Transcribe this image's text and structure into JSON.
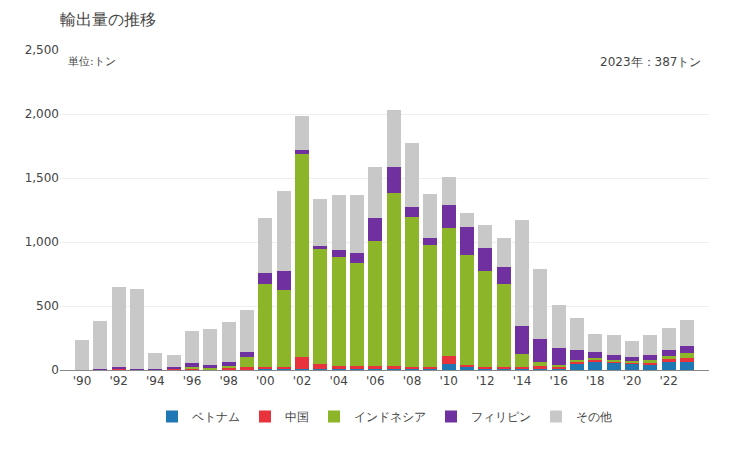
{
  "chart_data": {
    "type": "bar",
    "stacked": true,
    "title": "輸出量の推移",
    "annotations": [
      "単位:トン",
      "2023年：387トン"
    ],
    "x": [
      1990,
      1991,
      1992,
      1993,
      1994,
      1995,
      1996,
      1997,
      1998,
      1999,
      2000,
      2001,
      2002,
      2003,
      2004,
      2005,
      2006,
      2007,
      2008,
      2009,
      2010,
      2011,
      2012,
      2013,
      2014,
      2015,
      2016,
      2017,
      2018,
      2019,
      2020,
      2021,
      2022,
      2023
    ],
    "series": [
      {
        "name": "ベトナム",
        "color": "#1f77b4",
        "values": [
          0,
          0,
          5,
          2,
          0,
          2,
          2,
          2,
          2,
          5,
          5,
          5,
          5,
          5,
          5,
          5,
          5,
          5,
          5,
          10,
          50,
          20,
          10,
          10,
          10,
          15,
          15,
          50,
          60,
          55,
          50,
          45,
          65,
          65
        ]
      },
      {
        "name": "中国",
        "color": "#e8323c",
        "values": [
          2,
          5,
          10,
          5,
          3,
          5,
          10,
          5,
          10,
          15,
          20,
          20,
          100,
          40,
          30,
          30,
          30,
          30,
          20,
          15,
          60,
          20,
          15,
          15,
          15,
          15,
          15,
          15,
          20,
          15,
          10,
          15,
          20,
          25
        ]
      },
      {
        "name": "インドネシア",
        "color": "#8db52a",
        "values": [
          0,
          0,
          0,
          0,
          0,
          0,
          10,
          10,
          20,
          80,
          650,
          600,
          1580,
          900,
          850,
          800,
          970,
          1350,
          1170,
          950,
          1000,
          860,
          750,
          650,
          100,
          30,
          10,
          10,
          10,
          10,
          10,
          15,
          25,
          40
        ]
      },
      {
        "name": "フィリピン",
        "color": "#7030a0",
        "values": [
          0,
          2,
          5,
          2,
          2,
          20,
          30,
          20,
          30,
          40,
          80,
          150,
          30,
          20,
          50,
          80,
          180,
          200,
          80,
          60,
          180,
          220,
          180,
          130,
          220,
          180,
          130,
          80,
          50,
          40,
          30,
          40,
          45,
          55
        ]
      },
      {
        "name": "その他",
        "color": "#c8c8c8",
        "values": [
          235,
          375,
          630,
          620,
          125,
          90,
          250,
          285,
          310,
          330,
          430,
          620,
          270,
          370,
          430,
          455,
          400,
          450,
          500,
          340,
          220,
          110,
          180,
          230,
          830,
          550,
          340,
          250,
          140,
          155,
          130,
          155,
          175,
          202
        ]
      }
    ],
    "xlim": [
      1988.8,
      2024.2
    ],
    "xticks": [
      {
        "value": 1990,
        "label": "'90"
      },
      {
        "value": 1992,
        "label": "'92"
      },
      {
        "value": 1994,
        "label": "'94"
      },
      {
        "value": 1996,
        "label": "'96"
      },
      {
        "value": 1998,
        "label": "'98"
      },
      {
        "value": 2000,
        "label": "'00"
      },
      {
        "value": 2002,
        "label": "'02"
      },
      {
        "value": 2004,
        "label": "'04"
      },
      {
        "value": 2006,
        "label": "'06"
      },
      {
        "value": 2008,
        "label": "'08"
      },
      {
        "value": 2010,
        "label": "'10"
      },
      {
        "value": 2012,
        "label": "'12"
      },
      {
        "value": 2014,
        "label": "'14"
      },
      {
        "value": 2016,
        "label": "'16"
      },
      {
        "value": 2018,
        "label": "'18"
      },
      {
        "value": 2020,
        "label": "'20"
      },
      {
        "value": 2022,
        "label": "'22"
      }
    ],
    "ylim": [
      0,
      2500
    ],
    "yticks": [
      0,
      500,
      {
        "value": 1000,
        "label": "1,000"
      },
      {
        "value": 1500,
        "label": "1,500"
      },
      {
        "value": 2000,
        "label": "2,000"
      },
      {
        "value": 2500,
        "label": "2,500"
      }
    ],
    "grid": true,
    "legend": "bottom"
  }
}
